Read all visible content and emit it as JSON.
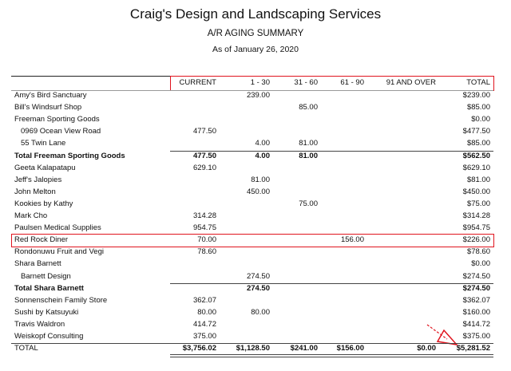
{
  "header": {
    "title": "Craig's Design and Landscaping Services",
    "subtitle": "A/R AGING SUMMARY",
    "date": "As of January 26, 2020"
  },
  "table": {
    "columns": [
      "CURRENT",
      "1 - 30",
      "31 - 60",
      "61 - 90",
      "91 AND OVER",
      "TOTAL"
    ],
    "rows": [
      {
        "label": "Amy's Bird Sanctuary",
        "cells": [
          null,
          "239.00",
          null,
          null,
          null,
          "$239.00"
        ]
      },
      {
        "label": "Bill's Windsurf Shop",
        "cells": [
          null,
          null,
          "85.00",
          null,
          null,
          "$85.00"
        ]
      },
      {
        "label": "Freeman Sporting Goods",
        "cells": [
          null,
          null,
          null,
          null,
          null,
          "$0.00"
        ]
      },
      {
        "label": "0969 Ocean View Road",
        "cells": [
          "477.50",
          null,
          null,
          null,
          null,
          "$477.50"
        ]
      },
      {
        "label": "55 Twin Lane",
        "cells": [
          null,
          "4.00",
          "81.00",
          null,
          null,
          "$85.00"
        ]
      },
      {
        "label": "Total Freeman Sporting Goods",
        "cells": [
          "477.50",
          "4.00",
          "81.00",
          null,
          null,
          "$562.50"
        ]
      },
      {
        "label": "Geeta Kalapatapu",
        "cells": [
          "629.10",
          null,
          null,
          null,
          null,
          "$629.10"
        ]
      },
      {
        "label": "Jeff's Jalopies",
        "cells": [
          null,
          "81.00",
          null,
          null,
          null,
          "$81.00"
        ]
      },
      {
        "label": "John Melton",
        "cells": [
          null,
          "450.00",
          null,
          null,
          null,
          "$450.00"
        ]
      },
      {
        "label": "Kookies by Kathy",
        "cells": [
          null,
          null,
          "75.00",
          null,
          null,
          "$75.00"
        ]
      },
      {
        "label": "Mark Cho",
        "cells": [
          "314.28",
          null,
          null,
          null,
          null,
          "$314.28"
        ]
      },
      {
        "label": "Paulsen Medical Supplies",
        "cells": [
          "954.75",
          null,
          null,
          null,
          null,
          "$954.75"
        ]
      },
      {
        "label": "Red Rock Diner",
        "cells": [
          "70.00",
          null,
          null,
          "156.00",
          null,
          "$226.00"
        ]
      },
      {
        "label": "Rondonuwu Fruit and Vegi",
        "cells": [
          "78.60",
          null,
          null,
          null,
          null,
          "$78.60"
        ]
      },
      {
        "label": "Shara Barnett",
        "cells": [
          null,
          null,
          null,
          null,
          null,
          "$0.00"
        ]
      },
      {
        "label": "Barnett Design",
        "cells": [
          null,
          "274.50",
          null,
          null,
          null,
          "$274.50"
        ]
      },
      {
        "label": "Total Shara Barnett",
        "cells": [
          null,
          "274.50",
          null,
          null,
          null,
          "$274.50"
        ]
      },
      {
        "label": "Sonnenschein Family Store",
        "cells": [
          "362.07",
          null,
          null,
          null,
          null,
          "$362.07"
        ]
      },
      {
        "label": "Sushi by Katsuyuki",
        "cells": [
          "80.00",
          "80.00",
          null,
          null,
          null,
          "$160.00"
        ]
      },
      {
        "label": "Travis Waldron",
        "cells": [
          "414.72",
          null,
          null,
          null,
          null,
          "$414.72"
        ]
      },
      {
        "label": "Weiskopf Consulting",
        "cells": [
          "375.00",
          null,
          null,
          null,
          null,
          "$375.00"
        ]
      },
      {
        "label": "TOTAL",
        "cells": [
          "$3,756.02",
          "$1,128.50",
          "$241.00",
          "$156.00",
          "$0.00",
          "$5,281.52"
        ]
      }
    ]
  }
}
